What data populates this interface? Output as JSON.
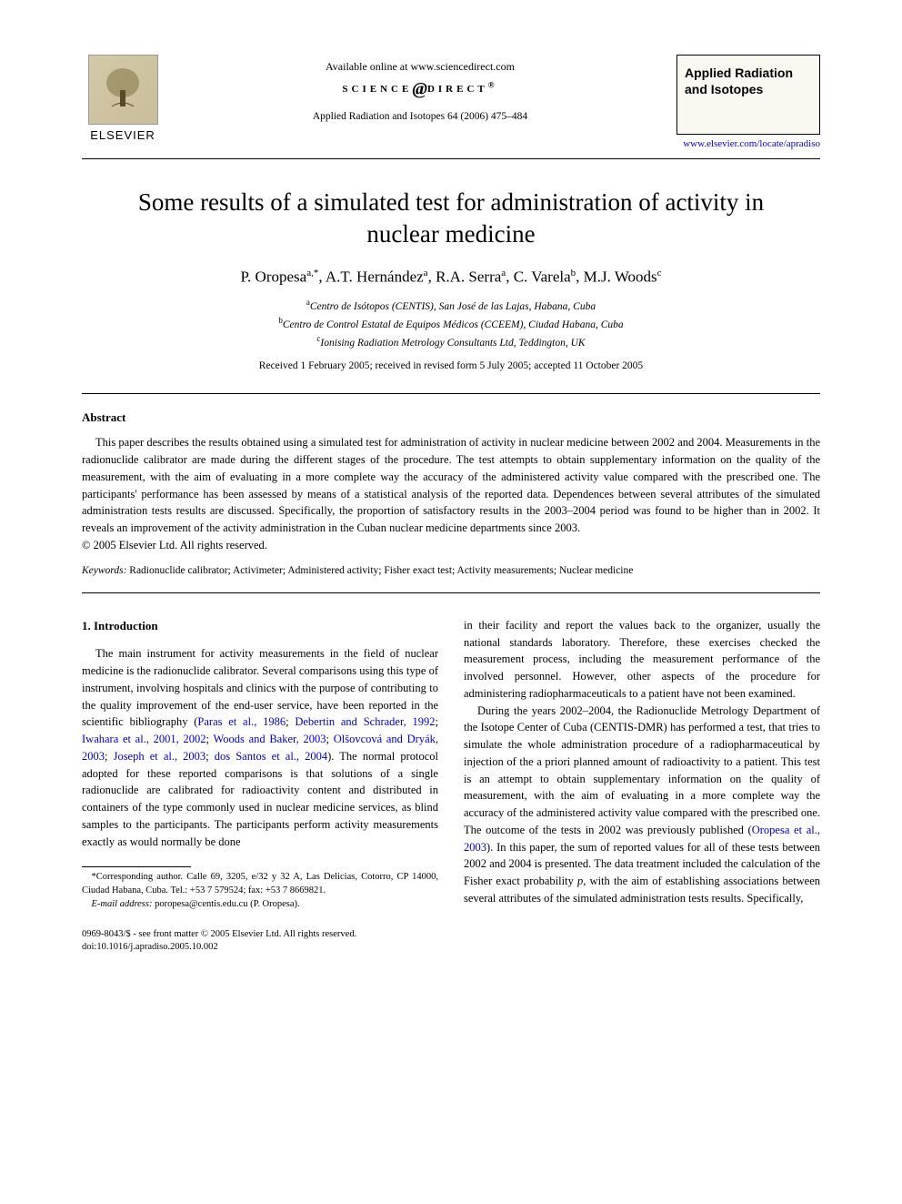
{
  "header": {
    "available_online": "Available online at www.sciencedirect.com",
    "sd_left": "SCIENCE",
    "sd_right": "DIRECT",
    "journal_citation": "Applied Radiation and Isotopes 64 (2006) 475–484",
    "elsevier_label": "ELSEVIER",
    "journal_box_title": "Applied Radiation and Isotopes",
    "journal_link": "www.elsevier.com/locate/apradiso"
  },
  "title": "Some results of a simulated test for administration of activity in nuclear medicine",
  "authors_html": "P. Oropesa<sup>a,*</sup>, A.T. Hernández<sup>a</sup>, R.A. Serra<sup>a</sup>, C. Varela<sup>b</sup>, M.J. Woods<sup>c</sup>",
  "affiliations": [
    "<sup>a</sup>Centro de Isótopos (CENTIS), San José de las Lajas, Habana, Cuba",
    "<sup>b</sup>Centro de Control Estatal de Equipos Médicos (CCEEM), Ciudad Habana, Cuba",
    "<sup>c</sup>Ionising Radiation Metrology Consultants Ltd, Teddington, UK"
  ],
  "dates": "Received 1 February 2005; received in revised form 5 July 2005; accepted 11 October 2005",
  "abstract": {
    "heading": "Abstract",
    "text": "This paper describes the results obtained using a simulated test for administration of activity in nuclear medicine between 2002 and 2004. Measurements in the radionuclide calibrator are made during the different stages of the procedure. The test attempts to obtain supplementary information on the quality of the measurement, with the aim of evaluating in a more complete way the accuracy of the administered activity value compared with the prescribed one. The participants' performance has been assessed by means of a statistical analysis of the reported data. Dependences between several attributes of the simulated administration tests results are discussed. Specifically, the proportion of satisfactory results in the 2003–2004 period was found to be higher than in 2002. It reveals an improvement of the activity administration in the Cuban nuclear medicine departments since 2003.",
    "copyright": "© 2005 Elsevier Ltd. All rights reserved."
  },
  "keywords": {
    "label": "Keywords:",
    "text": " Radionuclide calibrator; Activimeter; Administered activity; Fisher exact test; Activity measurements; Nuclear medicine"
  },
  "body": {
    "section_heading": "1. Introduction",
    "left_paras": [
      "The main instrument for activity measurements in the field of nuclear medicine is the radionuclide calibrator. Several comparisons using this type of instrument, involving hospitals and clinics with the purpose of contributing to the quality improvement of the end-user service, have been reported in the scientific bibliography (<span class=\"ref\">Paras et al., 1986</span>; <span class=\"ref\">Debertin and Schrader, 1992</span>; <span class=\"ref\">Iwahara et al., 2001, 2002</span>; <span class=\"ref\">Woods and Baker, 2003</span>; <span class=\"ref\">Olšovcová and Dryák, 2003</span>; <span class=\"ref\">Joseph et al., 2003</span>; <span class=\"ref\">dos Santos et al., 2004</span>). The normal protocol adopted for these reported comparisons is that solutions of a single radionuclide are calibrated for radioactivity content and distributed in containers of the type commonly used in nuclear medicine services, as blind samples to the participants. The participants perform activity measurements exactly as would normally be done"
    ],
    "right_paras": [
      "in their facility and report the values back to the organizer, usually the national standards laboratory. Therefore, these exercises checked the measurement process, including the measurement performance of the involved personnel. However, other aspects of the procedure for administering radiopharmaceuticals to a patient have not been examined.",
      "During the years 2002–2004, the Radionuclide Metrology Department of the Isotope Center of Cuba (CENTIS-DMR) has performed a test, that tries to simulate the whole administration procedure of a radiopharmaceutical by injection of the a priori planned amount of radioactivity to a patient. This test is an attempt to obtain supplementary information on the quality of measurement, with the aim of evaluating in a more complete way the accuracy of the administered activity value compared with the prescribed one. The outcome of the tests in 2002 was previously published (<span class=\"ref\">Oropesa et al., 2003</span>). In this paper, the sum of reported values for all of these tests between 2002 and 2004 is presented. The data treatment included the calculation of the Fisher exact probability <i>p</i>, with the aim of establishing associations between several attributes of the simulated administration tests results. Specifically,"
    ]
  },
  "footnote": {
    "corr": "*Corresponding author. Calle 69, 3205, e/32 y 32 A, Las Delicias, Cotorro, CP 14000, Ciudad Habana, Cuba. Tel.: +53 7 579524; fax: +53 7 8669821.",
    "email_label": "E-mail address:",
    "email": " poropesa@centis.edu.cu (P. Oropesa)."
  },
  "footer": {
    "left1": "0969-8043/$ - see front matter © 2005 Elsevier Ltd. All rights reserved.",
    "left2": "doi:10.1016/j.apradiso.2005.10.002"
  },
  "colors": {
    "text": "#000000",
    "link": "#0000cc",
    "background": "#ffffff",
    "journal_box_bg": "#faf8f0"
  },
  "typography": {
    "title_fontsize": 27,
    "authors_fontsize": 17,
    "body_fontsize": 12.5,
    "abstract_fontsize": 12.5,
    "footnote_fontsize": 10.5,
    "font_family": "Times/Georgia serif"
  }
}
